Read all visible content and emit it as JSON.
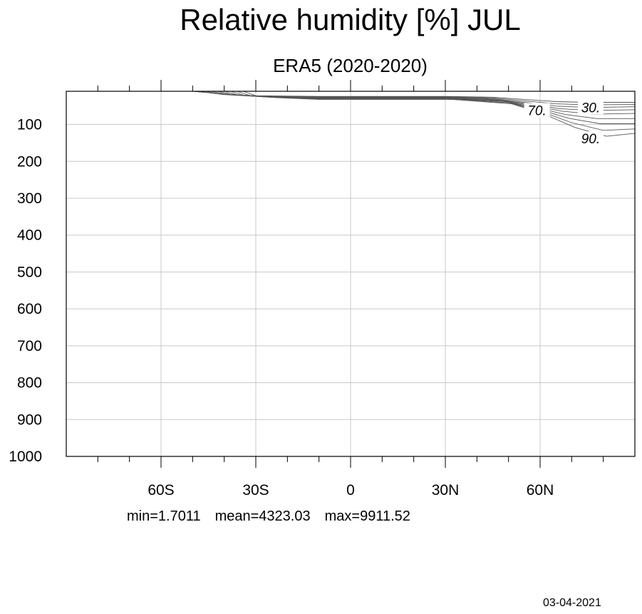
{
  "title": "Relative humidity [%] JUL",
  "subtitle": "ERA5 (2020-2020)",
  "stats": {
    "min": "min=1.7011",
    "mean": "mean=4323.03",
    "max": "max=9911.52"
  },
  "date": "03-04-2021",
  "chart_data": {
    "type": "contour",
    "title": "Relative humidity [%] JUL",
    "subtitle": "ERA5 (2020-2020)",
    "xlabel": "",
    "ylabel": "",
    "xlim": [
      -90,
      90
    ],
    "ylim": [
      1000,
      10
    ],
    "grid": true,
    "x_ticks": [
      {
        "value": -60,
        "label": "60S"
      },
      {
        "value": -30,
        "label": "30S"
      },
      {
        "value": 0,
        "label": "0"
      },
      {
        "value": 30,
        "label": "30N"
      },
      {
        "value": 60,
        "label": "60N"
      }
    ],
    "x_minor_ticks": [
      -80,
      -70,
      -50,
      -40,
      -20,
      -10,
      10,
      20,
      40,
      50,
      70,
      80
    ],
    "y_ticks": [
      100,
      200,
      300,
      400,
      500,
      600,
      700,
      800,
      900,
      1000
    ],
    "contour_labels": [
      {
        "text": "30.",
        "lat": 76,
        "plev": 55
      },
      {
        "text": "70.",
        "lat": 59,
        "plev": 63
      },
      {
        "text": "90.",
        "lat": 76,
        "plev": 140
      }
    ],
    "contour_lines": [
      [
        [
          -50,
          10
        ],
        [
          -45,
          14
        ],
        [
          -40,
          19
        ],
        [
          -30,
          22
        ],
        [
          -10,
          24
        ],
        [
          10,
          24
        ],
        [
          30,
          24
        ],
        [
          45,
          26
        ],
        [
          55,
          32
        ],
        [
          65,
          38
        ],
        [
          75,
          40
        ],
        [
          90,
          40
        ]
      ],
      [
        [
          -48,
          10
        ],
        [
          -44,
          15
        ],
        [
          -38,
          20
        ],
        [
          -30,
          23
        ],
        [
          -10,
          25
        ],
        [
          10,
          25
        ],
        [
          30,
          25
        ],
        [
          45,
          28
        ],
        [
          55,
          36
        ],
        [
          65,
          44
        ],
        [
          75,
          47
        ],
        [
          90,
          46
        ]
      ],
      [
        [
          -46,
          10
        ],
        [
          -42,
          16
        ],
        [
          -36,
          21
        ],
        [
          -28,
          24
        ],
        [
          -10,
          26
        ],
        [
          10,
          26
        ],
        [
          30,
          26
        ],
        [
          45,
          30
        ],
        [
          55,
          40
        ],
        [
          65,
          50
        ],
        [
          75,
          54
        ],
        [
          90,
          52
        ]
      ],
      [
        [
          -44,
          10
        ],
        [
          -40,
          17
        ],
        [
          -34,
          22
        ],
        [
          -26,
          25
        ],
        [
          -10,
          27
        ],
        [
          10,
          27
        ],
        [
          30,
          27
        ],
        [
          46,
          32
        ],
        [
          56,
          44
        ],
        [
          66,
          57
        ],
        [
          76,
          62
        ],
        [
          90,
          60
        ]
      ],
      [
        [
          -42,
          10
        ],
        [
          -38,
          18
        ],
        [
          -32,
          23
        ],
        [
          -24,
          26
        ],
        [
          -10,
          28
        ],
        [
          10,
          28
        ],
        [
          30,
          28
        ],
        [
          47,
          34
        ],
        [
          57,
          48
        ],
        [
          67,
          64
        ],
        [
          77,
          72
        ],
        [
          90,
          70
        ]
      ],
      [
        [
          -40,
          10
        ],
        [
          -36,
          19
        ],
        [
          -30,
          24
        ],
        [
          -22,
          27
        ],
        [
          -10,
          29
        ],
        [
          10,
          29
        ],
        [
          30,
          29
        ],
        [
          48,
          36
        ],
        [
          58,
          53
        ],
        [
          68,
          73
        ],
        [
          78,
          84
        ],
        [
          90,
          84
        ]
      ],
      [
        [
          -38,
          10
        ],
        [
          -34,
          20
        ],
        [
          -28,
          25
        ],
        [
          -20,
          28
        ],
        [
          -10,
          30
        ],
        [
          10,
          30
        ],
        [
          30,
          30
        ],
        [
          49,
          38
        ],
        [
          59,
          58
        ],
        [
          69,
          83
        ],
        [
          79,
          98
        ],
        [
          90,
          98
        ]
      ],
      [
        [
          -36,
          10
        ],
        [
          -32,
          21
        ],
        [
          -26,
          26
        ],
        [
          -18,
          29
        ],
        [
          -10,
          31
        ],
        [
          10,
          31
        ],
        [
          30,
          31
        ],
        [
          50,
          41
        ],
        [
          60,
          64
        ],
        [
          70,
          95
        ],
        [
          80,
          116
        ],
        [
          90,
          112
        ]
      ],
      [
        [
          -34,
          10
        ],
        [
          -30,
          22
        ],
        [
          -24,
          27
        ],
        [
          -16,
          30
        ],
        [
          -10,
          32
        ],
        [
          10,
          32
        ],
        [
          32,
          32
        ],
        [
          51,
          44
        ],
        [
          61,
          71
        ],
        [
          71,
          108
        ],
        [
          81,
          132
        ],
        [
          90,
          124
        ]
      ]
    ]
  }
}
